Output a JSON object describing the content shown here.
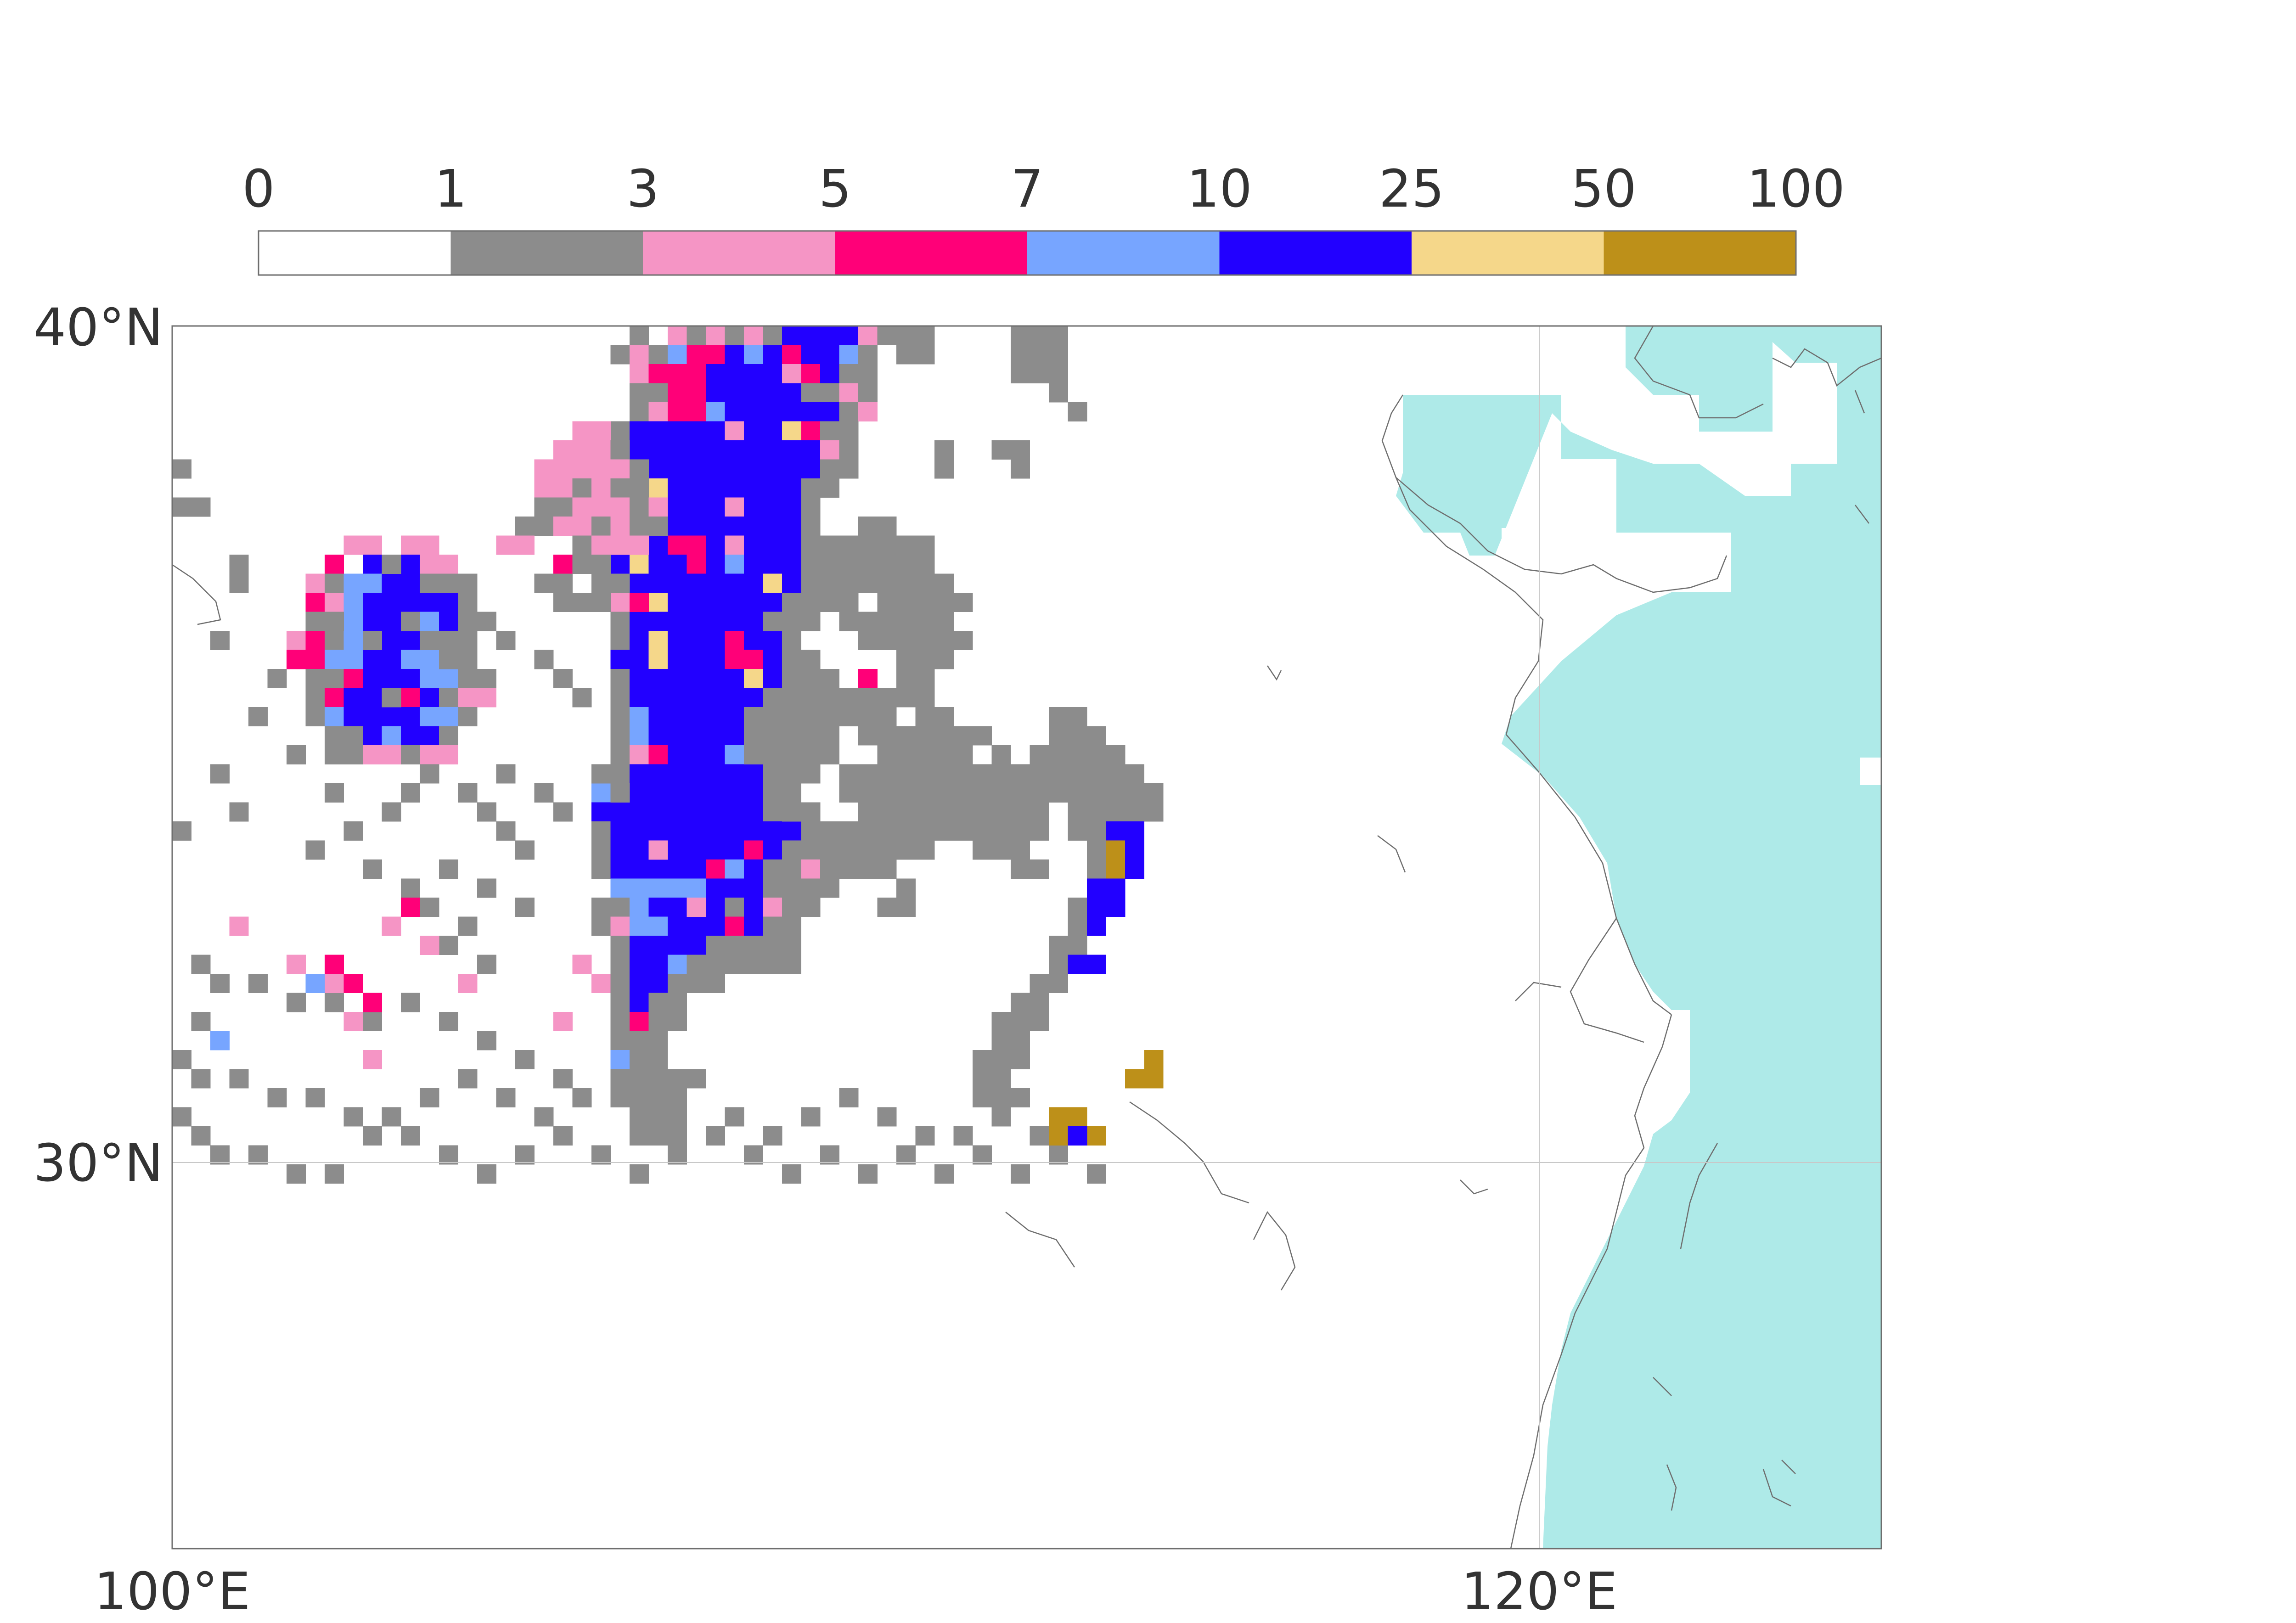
{
  "colorbar": {
    "labels": [
      "0",
      "1",
      "3",
      "5",
      "7",
      "10",
      "25",
      "50",
      "100"
    ],
    "colors": [
      "#ffffff",
      "#8c8c8c",
      "#f595c5",
      "#ff0078",
      "#77a5ff",
      "#2200ff",
      "#f5d78a",
      "#bd9019"
    ]
  },
  "map": {
    "xlabels": [
      "100°E",
      "120°E"
    ],
    "ylabels": [
      "40°N",
      "30°N"
    ],
    "lon_range": [
      100,
      125
    ],
    "lat_range": [
      25.4,
      40
    ],
    "grid_lon": [
      100,
      120
    ],
    "grid_lat": [
      30,
      40
    ],
    "sea_color": "#aeeae8",
    "land_color": "#ffffff",
    "coast_color": "#6e6e6e",
    "gridline_color": "#c8c8c8"
  }
}
